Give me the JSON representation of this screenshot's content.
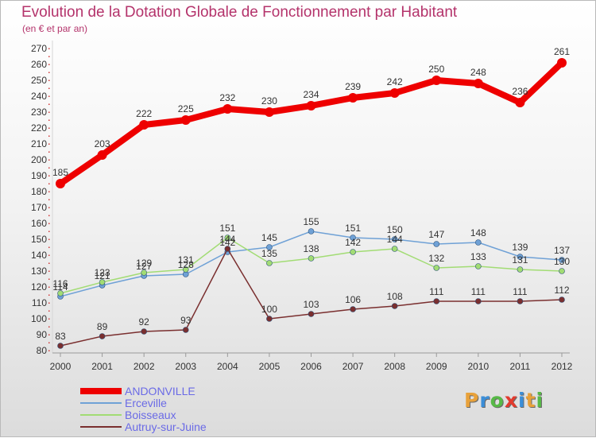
{
  "title": "Evolution de la Dotation Globale de Fonctionnement par Habitant",
  "subtitle": "(en € et par an)",
  "logo": {
    "letters": [
      {
        "char": "P",
        "color": "#e8a13a"
      },
      {
        "char": "r",
        "color": "#3b8ed8"
      },
      {
        "char": "o",
        "color": "#57b947"
      },
      {
        "char": "x",
        "color": "#e23b2e"
      },
      {
        "char": "i",
        "color": "#3b8ed8"
      },
      {
        "char": "t",
        "color": "#e8a13a"
      },
      {
        "char": "i",
        "color": "#57b947"
      }
    ]
  },
  "chart_data": {
    "type": "line",
    "title": "Evolution de la Dotation Globale de Fonctionnement par Habitant",
    "subtitle": "(en € et par an)",
    "x": [
      "2000",
      "2001",
      "2002",
      "2003",
      "2004",
      "2005",
      "2006",
      "2007",
      "2008",
      "2009",
      "2010",
      "2011",
      "2012"
    ],
    "ylim": [
      80,
      270
    ],
    "yticks": [
      80,
      90,
      100,
      110,
      120,
      130,
      140,
      150,
      160,
      170,
      180,
      190,
      200,
      210,
      220,
      230,
      240,
      250,
      260,
      270
    ],
    "grid": false,
    "legend_position": "bottom-left",
    "series": [
      {
        "name": "ANDONVILLE",
        "color": "#ee0000",
        "values": [
          185,
          203,
          222,
          225,
          232,
          230,
          234,
          239,
          242,
          250,
          248,
          236,
          261
        ]
      },
      {
        "name": "Erceville",
        "color": "#6fa1d6",
        "values": [
          114,
          121,
          127,
          128,
          142,
          145,
          155,
          151,
          150,
          147,
          148,
          139,
          137
        ]
      },
      {
        "name": "Boisseaux",
        "color": "#a2dc74",
        "values": [
          116,
          123,
          129,
          131,
          151,
          135,
          138,
          142,
          144,
          132,
          133,
          131,
          130
        ]
      },
      {
        "name": "Autruy-sur-Juine",
        "color": "#7a2f2f",
        "values": [
          83,
          89,
          92,
          93,
          144,
          100,
          103,
          106,
          108,
          111,
          111,
          111,
          112
        ]
      }
    ]
  }
}
